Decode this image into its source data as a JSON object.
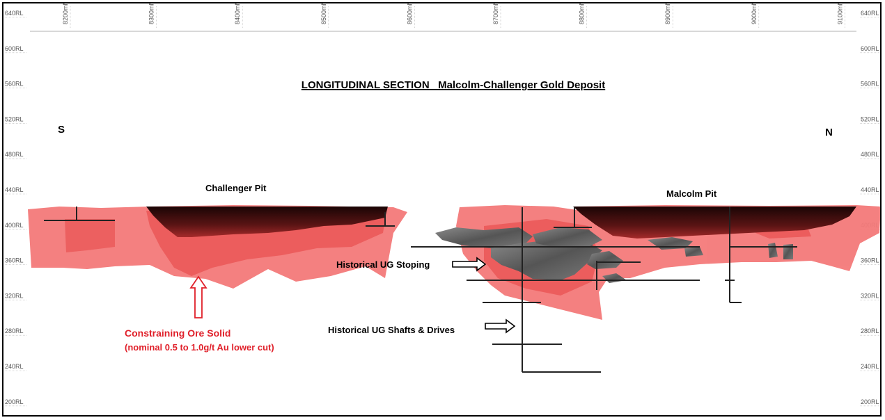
{
  "title": "LONGITUDINAL SECTION   Malcolm-Challenger Gold Deposit",
  "compass": {
    "south": "S",
    "north": "N"
  },
  "rl_labels": [
    "640RL",
    "600RL",
    "560RL",
    "520RL",
    "480RL",
    "440RL",
    "400RL",
    "360RL",
    "320RL",
    "280RL",
    "240RL",
    "200RL"
  ],
  "mn_labels": [
    "8200mN",
    "8300mN",
    "8400mN",
    "8500mN",
    "8600mN",
    "8700mN",
    "8800mN",
    "8900mN",
    "9000mN",
    "9100mN"
  ],
  "labels": {
    "challenger_pit": "Challenger Pit",
    "malcolm_pit": "Malcolm Pit",
    "ug_stoping": "Historical UG Stoping",
    "ug_shafts": "Historical UG Shafts & Drives",
    "ore_solid_line1": "Constraining Ore Solid",
    "ore_solid_line2": "(nominal 0.5 to 1.0g/t Au lower cut)"
  },
  "colors": {
    "ore_solid": "#f26a6a",
    "pit": "#3a0d0d",
    "stoping": "#6e6e6e",
    "workings": "#222222",
    "annotation_red": "#e0202a"
  }
}
